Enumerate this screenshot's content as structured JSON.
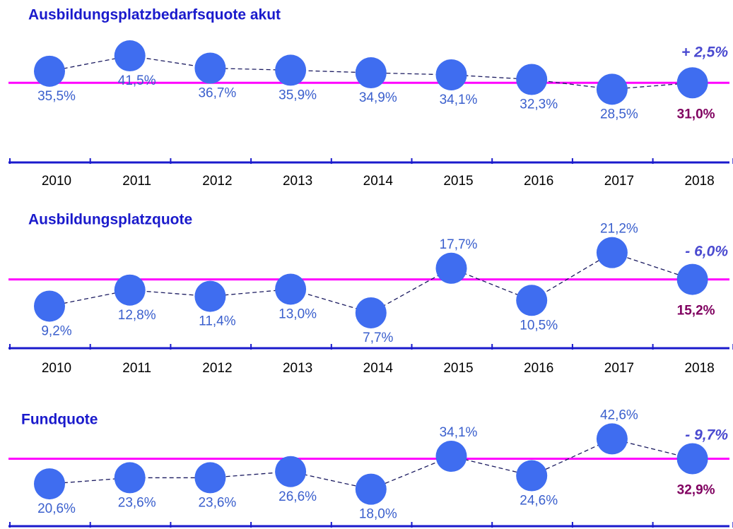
{
  "chart_data": [
    {
      "type": "line",
      "title": "Ausbildungsplatzbedarfsquote  akut",
      "categories": [
        "2010",
        "2011",
        "2012",
        "2013",
        "2014",
        "2015",
        "2016",
        "2017",
        "2018"
      ],
      "values": [
        35.5,
        41.5,
        36.7,
        35.9,
        34.9,
        34.1,
        32.3,
        28.5,
        31.0
      ],
      "value_labels": [
        "35,5%",
        "41,5%",
        "36,7%",
        "35,9%",
        "34,9%",
        "34,1%",
        "32,3%",
        "28,5%",
        "31,0%"
      ],
      "annotation": "+ 2,5%",
      "color": "#3f6df0",
      "ylim": [
        22,
        47
      ]
    },
    {
      "type": "line",
      "title": "Ausbildungsplatzquote",
      "categories": [
        "2010",
        "2011",
        "2012",
        "2013",
        "2014",
        "2015",
        "2016",
        "2017",
        "2018"
      ],
      "values": [
        9.2,
        12.8,
        11.4,
        13.0,
        7.7,
        17.7,
        10.5,
        21.2,
        15.2
      ],
      "value_labels": [
        "9,2%",
        "12,8%",
        "11,4%",
        "13,0%",
        "7,7%",
        "17,7%",
        "10,5%",
        "21,2%",
        "15,2%"
      ],
      "annotation": "- 6,0%",
      "color": "#3f6df0",
      "ylim": [
        5,
        24
      ]
    },
    {
      "type": "line",
      "title": "Fundquote",
      "values": [
        20.6,
        23.6,
        23.6,
        26.6,
        18.0,
        34.1,
        24.6,
        42.6,
        32.9
      ],
      "value_labels": [
        "20,6%",
        "23,6%",
        "23,6%",
        "26,6%",
        "18,0%",
        "34,1%",
        "24,6%",
        "42,6%",
        "32,9%"
      ],
      "annotation": "- 9,7%",
      "color": "#3f6df0",
      "ylim": [
        12,
        50
      ]
    }
  ]
}
